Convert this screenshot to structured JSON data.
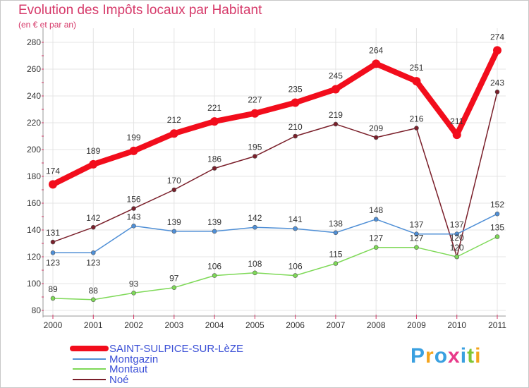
{
  "chart_data": {
    "type": "line",
    "title": "Evolution des Impôts locaux par Habitant",
    "subtitle": "(en € et par an)",
    "categories": [
      "2000",
      "2001",
      "2002",
      "2003",
      "2004",
      "2005",
      "2006",
      "2007",
      "2008",
      "2009",
      "2010",
      "2011"
    ],
    "ylim": [
      80,
      280
    ],
    "yticks": [
      "80",
      "100",
      "120",
      "140",
      "160",
      "180",
      "200",
      "220",
      "240",
      "260",
      "280"
    ],
    "grid": true,
    "series": [
      {
        "name": "SAINT-SULPICE-SUR-LèZE",
        "color": "#f20d1c",
        "values": [
          174,
          189,
          199,
          212,
          221,
          227,
          235,
          245,
          264,
          251,
          211,
          274
        ],
        "labels": [
          "174",
          "189",
          "199",
          "212",
          "221",
          "227",
          "235",
          "245",
          "264",
          "251",
          "211",
          "274"
        ]
      },
      {
        "name": "Montgazin",
        "color": "#4f8fd6",
        "values": [
          123,
          123,
          143,
          139,
          139,
          142,
          141,
          138,
          148,
          137,
          137,
          152
        ],
        "labels": [
          "123",
          "123",
          "143",
          "139",
          "139",
          "142",
          "141",
          "138",
          "148",
          "137",
          "137",
          "152"
        ]
      },
      {
        "name": "Montaut",
        "color": "#7ed957",
        "values": [
          89,
          88,
          93,
          97,
          106,
          108,
          106,
          115,
          127,
          127,
          120,
          135
        ],
        "labels": [
          "89",
          "88",
          "93",
          "97",
          "106",
          "108",
          "106",
          "115",
          "127",
          "127",
          "120",
          "135"
        ]
      },
      {
        "name": "Noé",
        "color": "#7a1f2a",
        "values": [
          131,
          142,
          156,
          170,
          186,
          195,
          210,
          219,
          209,
          216,
          120,
          243
        ],
        "labels": [
          "131",
          "142",
          "156",
          "170",
          "186",
          "195",
          "210",
          "219",
          "209",
          "216",
          "120",
          "243"
        ]
      }
    ]
  },
  "logo": {
    "letters": [
      "P",
      "r",
      "o",
      "x",
      "i",
      "t",
      "i"
    ],
    "colors": [
      "#3aa0e0",
      "#f4a41c",
      "#3aa0e0",
      "#e83a8a",
      "#3aa0e0",
      "#7ec636",
      "#f4a41c"
    ]
  }
}
